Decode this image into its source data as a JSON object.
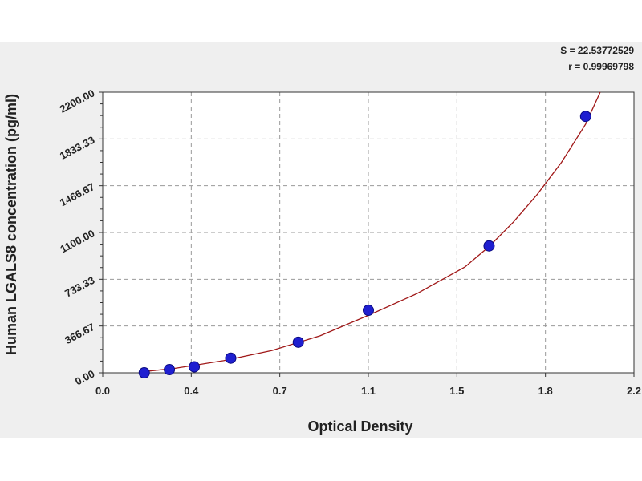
{
  "chart_data": {
    "type": "scatter",
    "title": "",
    "xlabel": "Optical Density",
    "ylabel": "Human LGALS8 concentration (pg/ml)",
    "xlim": [
      0.0,
      2.2
    ],
    "ylim": [
      0,
      2200
    ],
    "x_tick_labels": [
      "0.0",
      "0.4",
      "0.7",
      "1.1",
      "1.5",
      "1.8",
      "2.2"
    ],
    "x_ticks": [
      0.0,
      0.366667,
      0.733333,
      1.1,
      1.466667,
      1.833333,
      2.2
    ],
    "y_tick_labels": [
      "0.00",
      "366.67",
      "733.33",
      "1100.00",
      "1466.67",
      "1833.33",
      "2200.00"
    ],
    "y_ticks": [
      0,
      366.67,
      733.33,
      1100,
      1466.67,
      1833.33,
      2200
    ],
    "grid": true,
    "annotations": [
      "S = 22.53772529",
      "r = 0.99969798"
    ],
    "series": [
      {
        "type": "scatter",
        "x": [
          0.172,
          0.276,
          0.379,
          0.53,
          0.81,
          1.1,
          1.6,
          2.0
        ],
        "y": [
          0,
          25,
          47,
          115,
          240,
          490,
          995,
          2010
        ],
        "color": "#1f1fd0"
      },
      {
        "type": "line",
        "x": [
          0.15,
          0.3,
          0.5,
          0.7,
          0.9,
          1.1,
          1.3,
          1.5,
          1.6,
          1.7,
          1.8,
          1.9,
          2.0,
          2.06
        ],
        "y": [
          5,
          35,
          95,
          175,
          290,
          450,
          620,
          830,
          990,
          1180,
          1400,
          1650,
          1950,
          2200
        ],
        "color": "#a01818"
      }
    ]
  }
}
